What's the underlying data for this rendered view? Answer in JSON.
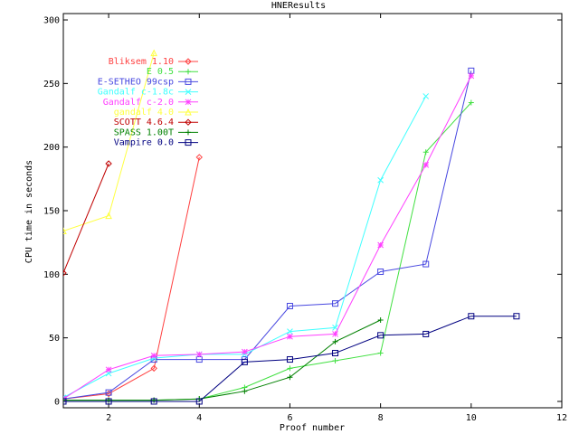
{
  "chart_data": {
    "type": "line",
    "title": "HNEResults",
    "xlabel": "Proof number",
    "ylabel": "CPU time in seconds",
    "xlim": [
      1,
      12
    ],
    "ylim": [
      -5,
      305
    ],
    "xticks": [
      2,
      4,
      6,
      8,
      10,
      12
    ],
    "yticks": [
      0,
      50,
      100,
      150,
      200,
      250,
      300
    ],
    "grid": false,
    "legend_position": "top-left",
    "series": [
      {
        "name": "Bliksem 1.10",
        "color": "#ff4040",
        "marker": "diamond",
        "x": [
          1,
          2,
          3,
          4
        ],
        "y": [
          2,
          6,
          26,
          192
        ]
      },
      {
        "name": "E 0.5",
        "color": "#40e040",
        "marker": "plus",
        "x": [
          1,
          2,
          3,
          4,
          5,
          6,
          7,
          8,
          9,
          10
        ],
        "y": [
          1,
          1,
          1,
          2,
          11,
          26,
          32,
          38,
          196,
          235
        ]
      },
      {
        "name": "E-SETHEO 99csp",
        "color": "#4848e0",
        "marker": "square",
        "x": [
          1,
          2,
          3,
          4,
          5,
          6,
          7,
          8,
          9,
          10
        ],
        "y": [
          2,
          7,
          33,
          33,
          33,
          75,
          77,
          102,
          108,
          260
        ]
      },
      {
        "name": "Gandalf c-1.8c",
        "color": "#40ffff",
        "marker": "cross",
        "x": [
          1,
          2,
          3,
          4,
          5,
          6,
          7,
          8,
          9
        ],
        "y": [
          3,
          22,
          34,
          37,
          37,
          55,
          58,
          174,
          240
        ]
      },
      {
        "name": "Gandalf c-2.0",
        "color": "#ff40ff",
        "marker": "star",
        "x": [
          1,
          2,
          3,
          4,
          5,
          6,
          7,
          8,
          9,
          10
        ],
        "y": [
          2,
          25,
          36,
          37,
          39,
          51,
          53,
          123,
          186,
          256
        ]
      },
      {
        "name": "gandalf 4.0",
        "color": "#ffff40",
        "marker": "triangle",
        "x": [
          1,
          2,
          3
        ],
        "y": [
          134,
          146,
          274
        ]
      },
      {
        "name": "SCOTT 4.6.4",
        "color": "#c00000",
        "marker": "diamond",
        "x": [
          1,
          2
        ],
        "y": [
          101,
          187
        ]
      },
      {
        "name": "SPASS 1.00T",
        "color": "#008000",
        "marker": "plus",
        "x": [
          1,
          2,
          3,
          4,
          5,
          6,
          7,
          8
        ],
        "y": [
          1,
          1,
          1,
          2,
          8,
          19,
          47,
          64
        ]
      },
      {
        "name": "Vampire 0.0",
        "color": "#000080",
        "marker": "square",
        "x": [
          1,
          2,
          3,
          4,
          5,
          6,
          7,
          8,
          9,
          10,
          11
        ],
        "y": [
          0,
          0,
          0,
          0,
          31,
          33,
          38,
          52,
          53,
          67,
          67
        ]
      }
    ]
  }
}
